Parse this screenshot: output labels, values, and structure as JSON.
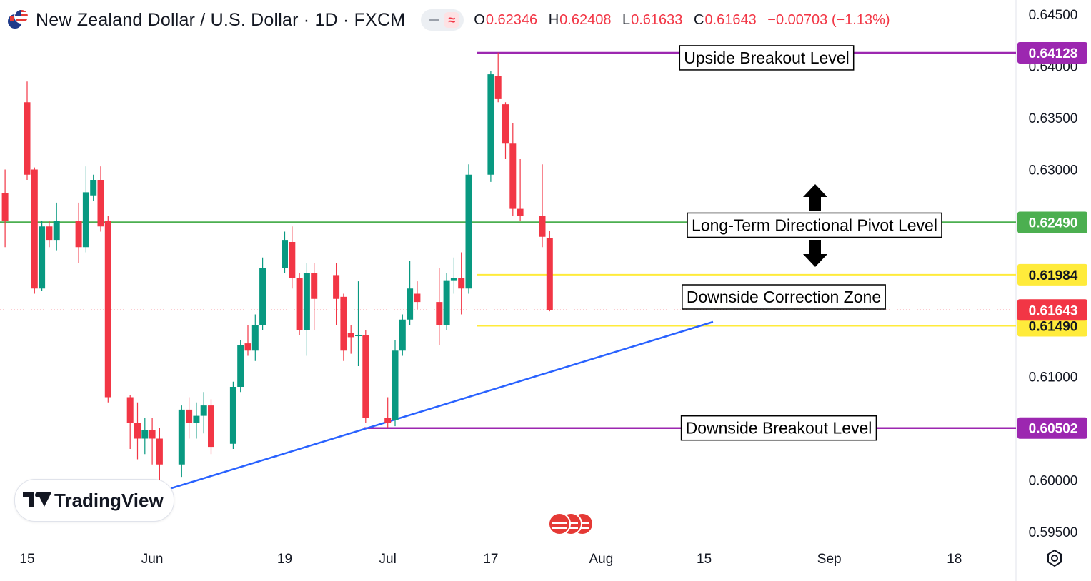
{
  "header": {
    "symbol": "New Zealand Dollar / U.S. Dollar · 1D · FXCM",
    "ohlc": [
      {
        "label": "O",
        "value": "0.62346"
      },
      {
        "label": "H",
        "value": "0.62408"
      },
      {
        "label": "L",
        "value": "0.61633"
      },
      {
        "label": "C",
        "value": "0.61643"
      },
      {
        "label": "",
        "value": "−0.00703 (−1.13%)"
      }
    ]
  },
  "branding": {
    "name": "TradingView"
  },
  "colors": {
    "up": "#089981",
    "down": "#f23645",
    "pivot": "#4caf50",
    "breakout": "#9c27b0",
    "zone": "#ffeb3b",
    "trend": "#2962ff",
    "current": "#f23645"
  },
  "chart_data": {
    "type": "candlestick",
    "ylim": [
      0.59395,
      0.64565
    ],
    "y_ticks": [
      "0.64500",
      "0.64000",
      "0.63500",
      "0.63000",
      "0.62500",
      "0.62000",
      "0.61500",
      "0.61000",
      "0.60500",
      "0.60000",
      "0.59500"
    ],
    "x_ticks": [
      {
        "label": "15",
        "date": "2023-05-15"
      },
      {
        "label": "Jun",
        "date": "2023-06-01"
      },
      {
        "label": "19",
        "date": "2023-06-19"
      },
      {
        "label": "Jul",
        "date": "2023-07-03"
      },
      {
        "label": "17",
        "date": "2023-07-17"
      },
      {
        "label": "Aug",
        "date": "2023-08-01"
      },
      {
        "label": "15",
        "date": "2023-08-15"
      },
      {
        "label": "Sep",
        "date": "2023-09-01"
      },
      {
        "label": "18",
        "date": "2023-09-18"
      }
    ],
    "candles": [
      {
        "d": "2023-05-12",
        "o": 0.6277,
        "h": 0.63,
        "l": 0.6225,
        "c": 0.625
      },
      {
        "d": "2023-05-15",
        "o": 0.6365,
        "h": 0.6385,
        "l": 0.629,
        "c": 0.6295
      },
      {
        "d": "2023-05-16",
        "o": 0.63,
        "h": 0.6302,
        "l": 0.618,
        "c": 0.6185
      },
      {
        "d": "2023-05-17",
        "o": 0.6185,
        "h": 0.625,
        "l": 0.6183,
        "c": 0.6245
      },
      {
        "d": "2023-05-18",
        "o": 0.6245,
        "h": 0.625,
        "l": 0.6225,
        "c": 0.6232
      },
      {
        "d": "2023-05-19",
        "o": 0.6232,
        "h": 0.6268,
        "l": 0.6222,
        "c": 0.625
      },
      {
        "d": "2023-05-22",
        "o": 0.625,
        "h": 0.6268,
        "l": 0.621,
        "c": 0.6225
      },
      {
        "d": "2023-05-23",
        "o": 0.6225,
        "h": 0.6303,
        "l": 0.622,
        "c": 0.6278
      },
      {
        "d": "2023-05-24",
        "o": 0.6275,
        "h": 0.6295,
        "l": 0.627,
        "c": 0.629
      },
      {
        "d": "2023-05-25",
        "o": 0.629,
        "h": 0.6303,
        "l": 0.624,
        "c": 0.6245
      },
      {
        "d": "2023-05-26",
        "o": 0.625,
        "h": 0.6255,
        "l": 0.6075,
        "c": 0.608
      },
      {
        "d": "2023-05-29",
        "o": 0.608,
        "h": 0.6082,
        "l": 0.603,
        "c": 0.6055
      },
      {
        "d": "2023-05-30",
        "o": 0.6055,
        "h": 0.6075,
        "l": 0.602,
        "c": 0.604
      },
      {
        "d": "2023-05-31",
        "o": 0.604,
        "h": 0.606,
        "l": 0.6025,
        "c": 0.6048
      },
      {
        "d": "2023-06-01",
        "o": 0.6048,
        "h": 0.606,
        "l": 0.6015,
        "c": 0.604
      },
      {
        "d": "2023-06-02",
        "o": 0.604,
        "h": 0.605,
        "l": 0.6,
        "c": 0.6015
      },
      {
        "d": "2023-06-05",
        "o": 0.6015,
        "h": 0.6072,
        "l": 0.6003,
        "c": 0.6068
      },
      {
        "d": "2023-06-06",
        "o": 0.6068,
        "h": 0.608,
        "l": 0.604,
        "c": 0.6055
      },
      {
        "d": "2023-06-07",
        "o": 0.6055,
        "h": 0.6075,
        "l": 0.604,
        "c": 0.6062
      },
      {
        "d": "2023-06-08",
        "o": 0.6062,
        "h": 0.6085,
        "l": 0.6045,
        "c": 0.6072
      },
      {
        "d": "2023-06-09",
        "o": 0.6072,
        "h": 0.6078,
        "l": 0.6025,
        "c": 0.6032
      },
      {
        "d": "2023-06-12",
        "o": 0.6035,
        "h": 0.6095,
        "l": 0.603,
        "c": 0.609
      },
      {
        "d": "2023-06-13",
        "o": 0.609,
        "h": 0.6135,
        "l": 0.6085,
        "c": 0.613
      },
      {
        "d": "2023-06-14",
        "o": 0.6132,
        "h": 0.615,
        "l": 0.612,
        "c": 0.6125
      },
      {
        "d": "2023-06-15",
        "o": 0.6125,
        "h": 0.616,
        "l": 0.6115,
        "c": 0.615
      },
      {
        "d": "2023-06-16",
        "o": 0.615,
        "h": 0.6215,
        "l": 0.6145,
        "c": 0.6205
      },
      {
        "d": "2023-06-19",
        "o": 0.6205,
        "h": 0.624,
        "l": 0.62,
        "c": 0.6232
      },
      {
        "d": "2023-06-20",
        "o": 0.623,
        "h": 0.6245,
        "l": 0.6185,
        "c": 0.6195
      },
      {
        "d": "2023-06-21",
        "o": 0.6195,
        "h": 0.62,
        "l": 0.614,
        "c": 0.6145
      },
      {
        "d": "2023-06-22",
        "o": 0.6145,
        "h": 0.621,
        "l": 0.612,
        "c": 0.62
      },
      {
        "d": "2023-06-23",
        "o": 0.62,
        "h": 0.621,
        "l": 0.6145,
        "c": 0.6175
      },
      {
        "d": "2023-06-26",
        "o": 0.6198,
        "h": 0.621,
        "l": 0.615,
        "c": 0.6175
      },
      {
        "d": "2023-06-27",
        "o": 0.6177,
        "h": 0.618,
        "l": 0.6115,
        "c": 0.6125
      },
      {
        "d": "2023-06-28",
        "o": 0.6142,
        "h": 0.615,
        "l": 0.6122,
        "c": 0.6138
      },
      {
        "d": "2023-06-29",
        "o": 0.614,
        "h": 0.6192,
        "l": 0.611,
        "c": 0.614
      },
      {
        "d": "2023-06-30",
        "o": 0.614,
        "h": 0.6145,
        "l": 0.6055,
        "c": 0.606
      },
      {
        "d": "2023-07-03",
        "o": 0.606,
        "h": 0.608,
        "l": 0.605,
        "c": 0.6055
      },
      {
        "d": "2023-07-04",
        "o": 0.6058,
        "h": 0.6135,
        "l": 0.6052,
        "c": 0.6125
      },
      {
        "d": "2023-07-05",
        "o": 0.6125,
        "h": 0.616,
        "l": 0.612,
        "c": 0.6155
      },
      {
        "d": "2023-07-06",
        "o": 0.6155,
        "h": 0.6212,
        "l": 0.615,
        "c": 0.6185
      },
      {
        "d": "2023-07-07",
        "o": 0.618,
        "h": 0.6192,
        "l": 0.6165,
        "c": 0.6172
      },
      {
        "d": "2023-07-10",
        "o": 0.6172,
        "h": 0.6205,
        "l": 0.613,
        "c": 0.615
      },
      {
        "d": "2023-07-11",
        "o": 0.615,
        "h": 0.62,
        "l": 0.6145,
        "c": 0.6193
      },
      {
        "d": "2023-07-12",
        "o": 0.6193,
        "h": 0.6215,
        "l": 0.618,
        "c": 0.6195
      },
      {
        "d": "2023-07-13",
        "o": 0.6195,
        "h": 0.622,
        "l": 0.616,
        "c": 0.6185
      },
      {
        "d": "2023-07-14",
        "o": 0.6185,
        "h": 0.6305,
        "l": 0.618,
        "c": 0.6295
      },
      {
        "d": "2023-07-17",
        "o": 0.6295,
        "h": 0.6395,
        "l": 0.6288,
        "c": 0.6392
      },
      {
        "d": "2023-07-18",
        "o": 0.639,
        "h": 0.6413,
        "l": 0.6365,
        "c": 0.6368
      },
      {
        "d": "2023-07-19",
        "o": 0.6363,
        "h": 0.6365,
        "l": 0.631,
        "c": 0.6325
      },
      {
        "d": "2023-07-20",
        "o": 0.6325,
        "h": 0.6345,
        "l": 0.6255,
        "c": 0.6262
      },
      {
        "d": "2023-07-21",
        "o": 0.6262,
        "h": 0.631,
        "l": 0.625,
        "c": 0.6255
      },
      {
        "d": "2023-07-24",
        "o": 0.6255,
        "h": 0.6305,
        "l": 0.6225,
        "c": 0.6235
      },
      {
        "d": "2023-07-25",
        "o": 0.6234,
        "h": 0.6241,
        "l": 0.6163,
        "c": 0.6164
      }
    ],
    "horizontal_levels": [
      {
        "label": "Upside Breakout Level",
        "value": 0.64128,
        "price_label": "0.64128",
        "style": "breakout"
      },
      {
        "label": "Long-Term Directional Pivot Level",
        "value": 0.6249,
        "price_label": "0.62490",
        "style": "pivot"
      },
      {
        "label": "",
        "value": 0.61984,
        "price_label": "0.61984",
        "style": "zone"
      },
      {
        "label": "Downside Correction Zone",
        "value": 0.6149,
        "price_label": "0.61490",
        "style": "zone"
      },
      {
        "label": "Downside Breakout Level",
        "value": 0.60502,
        "price_label": "0.60502",
        "style": "breakout"
      }
    ],
    "current_price": {
      "value": 0.61643,
      "label": "0.61643"
    },
    "trendline": {
      "from": {
        "date": "2023-06-02",
        "value": 0.5998
      },
      "to": {
        "date": "2023-08-15",
        "value": 0.6155
      }
    }
  }
}
